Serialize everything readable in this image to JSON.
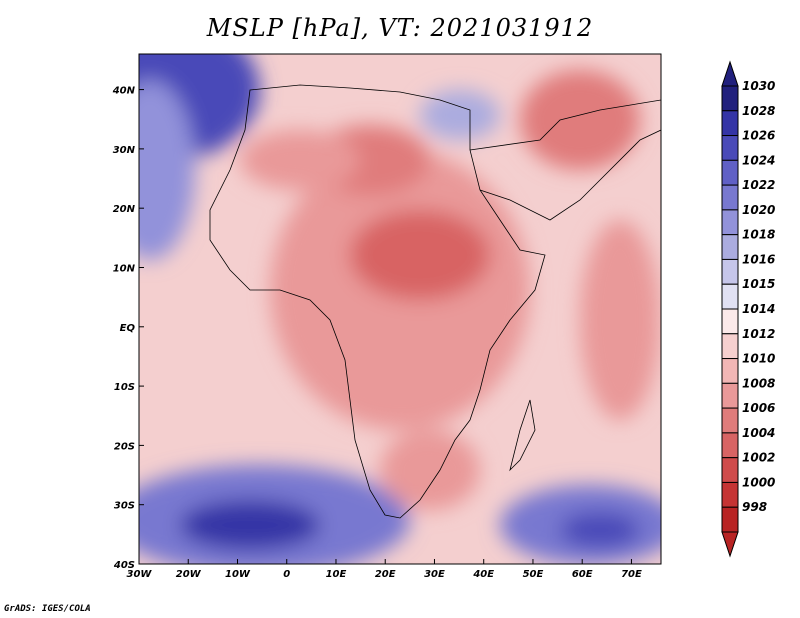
{
  "title": "MSLP [hPa], VT: 2021031912",
  "footer": "GrADS: IGES/COLA",
  "map": {
    "region": "Africa",
    "lon_range": [
      -30,
      76
    ],
    "lat_range": [
      -40,
      46
    ],
    "x_ticks": [
      "30W",
      "20W",
      "10W",
      "0",
      "10E",
      "20E",
      "30E",
      "40E",
      "50E",
      "60E",
      "70E"
    ],
    "y_ticks": [
      "40S",
      "30S",
      "20S",
      "10S",
      "EQ",
      "10N",
      "20N",
      "30N",
      "40N"
    ]
  },
  "colorbar": {
    "units": "hPa",
    "levels": [
      "1030",
      "1028",
      "1026",
      "1024",
      "1022",
      "1020",
      "1018",
      "1016",
      "1015",
      "1014",
      "1012",
      "1010",
      "1008",
      "1006",
      "1004",
      "1002",
      "1000",
      "998"
    ],
    "colors": [
      "#21207d",
      "#3434a6",
      "#4a4ab8",
      "#6060c6",
      "#7878d0",
      "#9292da",
      "#abacdf",
      "#c6c6ea",
      "#e1e1f3",
      "#fbe9e9",
      "#f6d0cf",
      "#f2b6b5",
      "#e99999",
      "#e07c7b",
      "#d86464",
      "#d04b4b",
      "#c53434",
      "#b82424"
    ]
  },
  "colors": {
    "land_outline": "#000000",
    "ocean_high": "#5a5ac2",
    "ocean_mid": "#c6c6ea",
    "land_low": "#e07c7b"
  }
}
